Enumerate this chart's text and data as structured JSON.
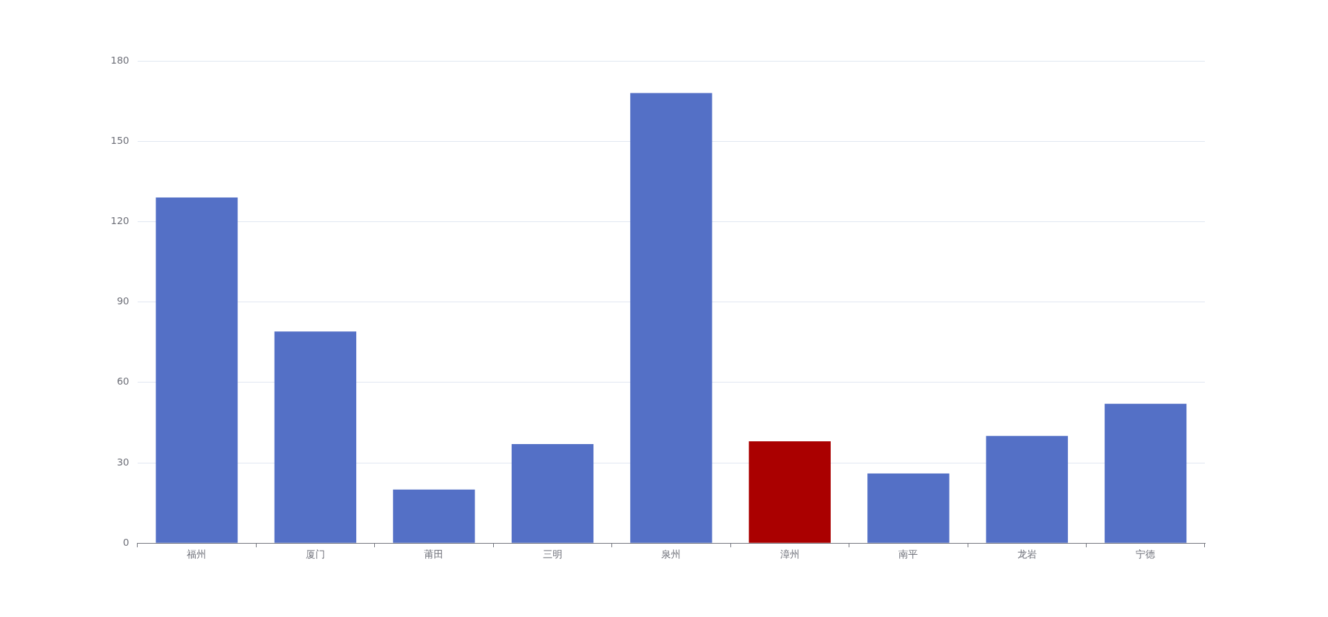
{
  "chart_data": {
    "type": "bar",
    "categories": [
      "福州",
      "厦门",
      "莆田",
      "三明",
      "泉州",
      "漳州",
      "南平",
      "龙岩",
      "宁德"
    ],
    "values": [
      129,
      79,
      20,
      37,
      168,
      38,
      26,
      40,
      52
    ],
    "colors": [
      "#5470c6",
      "#5470c6",
      "#5470c6",
      "#5470c6",
      "#5470c6",
      "#aa0000",
      "#5470c6",
      "#5470c6",
      "#5470c6"
    ],
    "ylim": [
      0,
      180
    ],
    "yticks": [
      0,
      30,
      60,
      90,
      120,
      150,
      180
    ],
    "grid": "y"
  }
}
